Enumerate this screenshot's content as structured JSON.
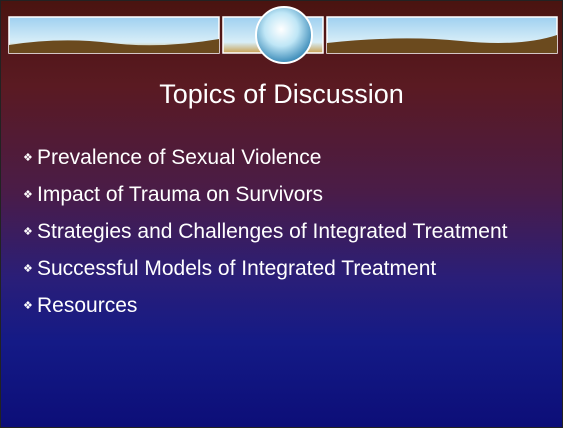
{
  "slide": {
    "title": "Topics of Discussion",
    "bullets": [
      "Prevalence of Sexual Violence",
      "Impact of Trauma on Survivors",
      "Strategies and Challenges of Integrated Treatment",
      "Successful Models of Integrated Treatment",
      "Resources"
    ]
  }
}
